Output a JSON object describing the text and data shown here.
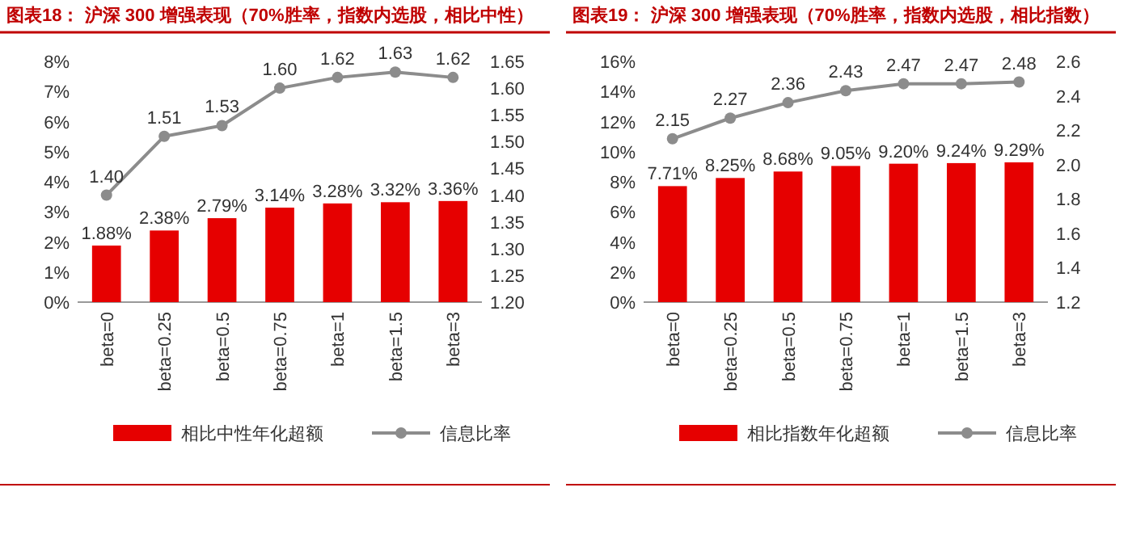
{
  "chart_data": [
    {
      "type": "bar",
      "title": "图表18：  沪深 300 增强表现（70%胜率，指数内选股，相比中性）",
      "categories": [
        "beta=0",
        "beta=0.25",
        "beta=0.5",
        "beta=0.75",
        "beta=1",
        "beta=1.5",
        "beta=3"
      ],
      "series": [
        {
          "name": "相比中性年化超额",
          "color": "#e60000",
          "values": [
            1.88,
            2.38,
            2.79,
            3.14,
            3.28,
            3.32,
            3.36
          ],
          "value_labels": [
            "1.88%",
            "2.38%",
            "2.79%",
            "3.14%",
            "3.28%",
            "3.32%",
            "3.36%"
          ]
        },
        {
          "name": "信息比率",
          "type": "line",
          "axis": "y2",
          "color": "#8c8c8c",
          "marker": "circle",
          "values": [
            1.4,
            1.51,
            1.53,
            1.6,
            1.62,
            1.63,
            1.62
          ],
          "value_labels": [
            "1.40",
            "1.51",
            "1.53",
            "1.60",
            "1.62",
            "1.63",
            "1.62"
          ]
        }
      ],
      "ylim": [
        0,
        8
      ],
      "yticks": [
        {
          "value": 0,
          "label": "0%"
        },
        {
          "value": 1,
          "label": "1%"
        },
        {
          "value": 2,
          "label": "2%"
        },
        {
          "value": 3,
          "label": "3%"
        },
        {
          "value": 4,
          "label": "4%"
        },
        {
          "value": 5,
          "label": "5%"
        },
        {
          "value": 6,
          "label": "6%"
        },
        {
          "value": 7,
          "label": "7%"
        },
        {
          "value": 8,
          "label": "8%"
        }
      ],
      "y2lim": [
        1.2,
        1.65
      ],
      "y2ticks": [
        {
          "value": 1.2,
          "label": "1.20"
        },
        {
          "value": 1.25,
          "label": "1.25"
        },
        {
          "value": 1.3,
          "label": "1.30"
        },
        {
          "value": 1.35,
          "label": "1.35"
        },
        {
          "value": 1.4,
          "label": "1.40"
        },
        {
          "value": 1.45,
          "label": "1.45"
        },
        {
          "value": 1.5,
          "label": "1.50"
        },
        {
          "value": 1.55,
          "label": "1.55"
        },
        {
          "value": 1.6,
          "label": "1.60"
        },
        {
          "value": 1.65,
          "label": "1.65"
        }
      ],
      "legend": "bottom",
      "grid": false
    },
    {
      "type": "bar",
      "title": "图表19：  沪深 300 增强表现（70%胜率，指数内选股，相比指数）",
      "categories": [
        "beta=0",
        "beta=0.25",
        "beta=0.5",
        "beta=0.75",
        "beta=1",
        "beta=1.5",
        "beta=3"
      ],
      "series": [
        {
          "name": "相比指数年化超额",
          "color": "#e60000",
          "values": [
            7.71,
            8.25,
            8.68,
            9.05,
            9.2,
            9.24,
            9.29
          ],
          "value_labels": [
            "7.71%",
            "8.25%",
            "8.68%",
            "9.05%",
            "9.20%",
            "9.24%",
            "9.29%"
          ]
        },
        {
          "name": "信息比率",
          "type": "line",
          "axis": "y2",
          "color": "#8c8c8c",
          "marker": "circle",
          "values": [
            2.15,
            2.27,
            2.36,
            2.43,
            2.47,
            2.47,
            2.48
          ],
          "value_labels": [
            "2.15",
            "2.27",
            "2.36",
            "2.43",
            "2.47",
            "2.47",
            "2.48"
          ]
        }
      ],
      "ylim": [
        0,
        16
      ],
      "yticks": [
        {
          "value": 0,
          "label": "0%"
        },
        {
          "value": 2,
          "label": "2%"
        },
        {
          "value": 4,
          "label": "4%"
        },
        {
          "value": 6,
          "label": "6%"
        },
        {
          "value": 8,
          "label": "8%"
        },
        {
          "value": 10,
          "label": "10%"
        },
        {
          "value": 12,
          "label": "12%"
        },
        {
          "value": 14,
          "label": "14%"
        },
        {
          "value": 16,
          "label": "16%"
        }
      ],
      "y2lim": [
        1.2,
        2.6
      ],
      "y2ticks": [
        1.2,
        1.4,
        1.6,
        1.8,
        {
          "value": 2,
          "label": "2.0"
        },
        2.2,
        2.4,
        2.6
      ],
      "legend": "bottom",
      "grid": false
    }
  ]
}
